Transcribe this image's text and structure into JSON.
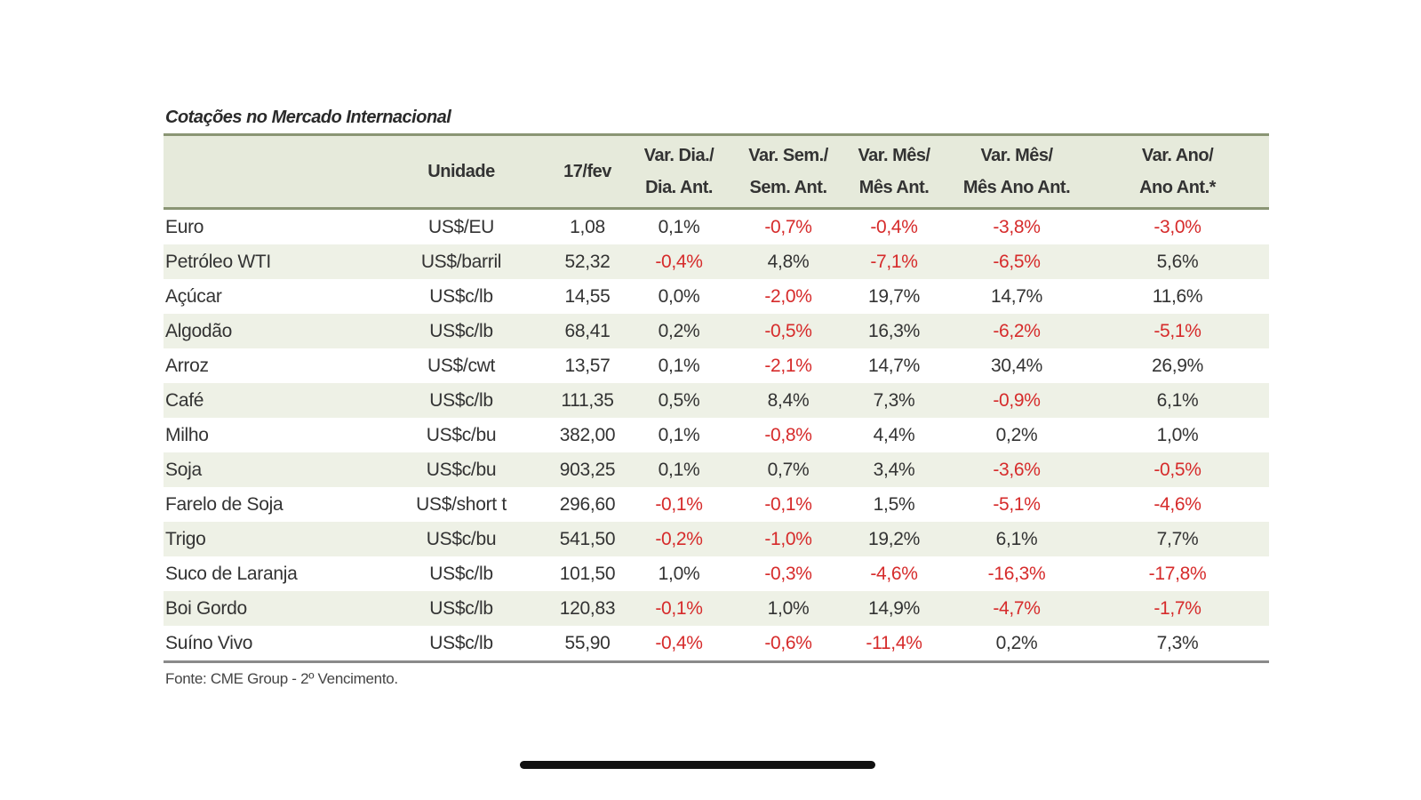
{
  "title": "Cotações no Mercado Internacional",
  "headers": {
    "col_name": "",
    "col_unit": "Unidade",
    "col_price": "17/fev",
    "col_day": [
      "Var. Dia./",
      "Dia. Ant."
    ],
    "col_week": [
      "Var. Sem./",
      "Sem. Ant."
    ],
    "col_month": [
      "Var. Mês/",
      "Mês Ant."
    ],
    "col_month_year": [
      "Var. Mês/",
      "Mês Ano Ant."
    ],
    "col_year": [
      "Var. Ano/",
      "Ano Ant.*"
    ]
  },
  "rows": [
    {
      "name": "Euro",
      "unit": "US$/EU",
      "price": "1,08",
      "day": "0,1%",
      "week": "-0,7%",
      "month": "-0,4%",
      "month_year": "-3,8%",
      "year": "-3,0%"
    },
    {
      "name": "Petróleo WTI",
      "unit": "US$/barril",
      "price": "52,32",
      "day": "-0,4%",
      "week": "4,8%",
      "month": "-7,1%",
      "month_year": "-6,5%",
      "year": "5,6%"
    },
    {
      "name": "Açúcar",
      "unit": "US$c/lb",
      "price": "14,55",
      "day": "0,0%",
      "week": "-2,0%",
      "month": "19,7%",
      "month_year": "14,7%",
      "year": "11,6%"
    },
    {
      "name": "Algodão",
      "unit": "US$c/lb",
      "price": "68,41",
      "day": "0,2%",
      "week": "-0,5%",
      "month": "16,3%",
      "month_year": "-6,2%",
      "year": "-5,1%"
    },
    {
      "name": "Arroz",
      "unit": "US$/cwt",
      "price": "13,57",
      "day": "0,1%",
      "week": "-2,1%",
      "month": "14,7%",
      "month_year": "30,4%",
      "year": "26,9%"
    },
    {
      "name": "Café",
      "unit": "US$c/lb",
      "price": "111,35",
      "day": "0,5%",
      "week": "8,4%",
      "month": "7,3%",
      "month_year": "-0,9%",
      "year": "6,1%"
    },
    {
      "name": "Milho",
      "unit": "US$c/bu",
      "price": "382,00",
      "day": "0,1%",
      "week": "-0,8%",
      "month": "4,4%",
      "month_year": "0,2%",
      "year": "1,0%"
    },
    {
      "name": "Soja",
      "unit": "US$c/bu",
      "price": "903,25",
      "day": "0,1%",
      "week": "0,7%",
      "month": "3,4%",
      "month_year": "-3,6%",
      "year": "-0,5%"
    },
    {
      "name": "Farelo de Soja",
      "unit": "US$/short t",
      "price": "296,60",
      "day": "-0,1%",
      "week": "-0,1%",
      "month": "1,5%",
      "month_year": "-5,1%",
      "year": "-4,6%"
    },
    {
      "name": "Trigo",
      "unit": "US$c/bu",
      "price": "541,50",
      "day": "-0,2%",
      "week": "-1,0%",
      "month": "19,2%",
      "month_year": "6,1%",
      "year": "7,7%"
    },
    {
      "name": "Suco de Laranja",
      "unit": "US$c/lb",
      "price": "101,50",
      "day": "1,0%",
      "week": "-0,3%",
      "month": "-4,6%",
      "month_year": "-16,3%",
      "year": "-17,8%"
    },
    {
      "name": "Boi Gordo",
      "unit": "US$c/lb",
      "price": "120,83",
      "day": "-0,1%",
      "week": "1,0%",
      "month": "14,9%",
      "month_year": "-4,7%",
      "year": "-1,7%"
    },
    {
      "name": "Suíno Vivo",
      "unit": "US$c/lb",
      "price": "55,90",
      "day": "-0,4%",
      "week": "-0,6%",
      "month": "-11,4%",
      "month_year": "0,2%",
      "year": "7,3%"
    }
  ],
  "source": "Fonte: CME Group - 2º Vencimento.",
  "colors": {
    "negative": "#d62b2b",
    "header_bg": "#e6eadb",
    "stripe_bg": "#eef1e6",
    "rule": "#8a9574"
  }
}
